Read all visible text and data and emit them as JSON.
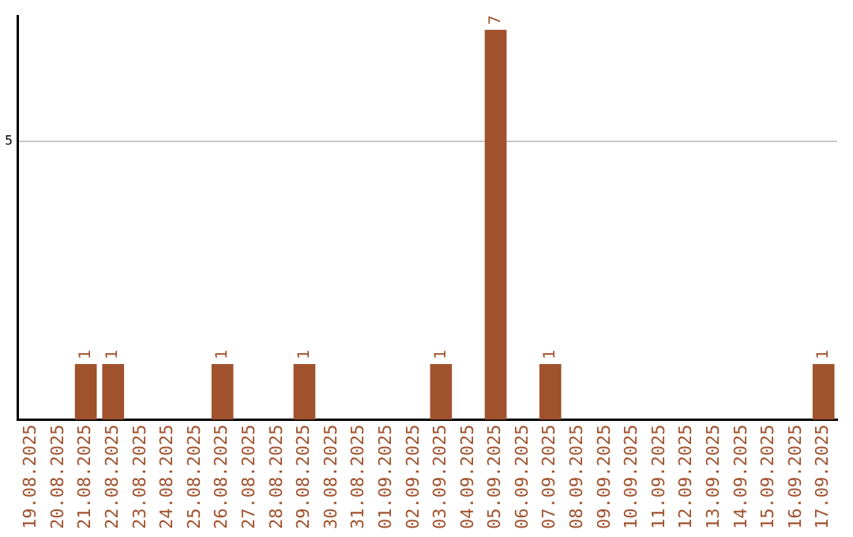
{
  "chart_data": {
    "type": "bar",
    "categories": [
      "19.08.2025",
      "20.08.2025",
      "21.08.2025",
      "22.08.2025",
      "23.08.2025",
      "24.08.2025",
      "25.08.2025",
      "26.08.2025",
      "27.08.2025",
      "28.08.2025",
      "29.08.2025",
      "30.08.2025",
      "31.08.2025",
      "01.09.2025",
      "02.09.2025",
      "03.09.2025",
      "04.09.2025",
      "05.09.2025",
      "06.09.2025",
      "07.09.2025",
      "08.09.2025",
      "09.09.2025",
      "10.09.2025",
      "11.09.2025",
      "12.09.2025",
      "13.09.2025",
      "14.09.2025",
      "15.09.2025",
      "16.09.2025",
      "17.09.2025"
    ],
    "values": [
      0,
      0,
      1,
      1,
      0,
      0,
      0,
      1,
      0,
      0,
      1,
      0,
      0,
      0,
      0,
      1,
      0,
      7,
      0,
      1,
      0,
      0,
      0,
      0,
      0,
      0,
      0,
      0,
      0,
      1
    ],
    "value_labels": [
      null,
      null,
      "1",
      "1",
      null,
      null,
      null,
      "1",
      null,
      null,
      "1",
      null,
      null,
      null,
      null,
      "1",
      null,
      "7",
      null,
      "1",
      null,
      null,
      null,
      null,
      null,
      null,
      null,
      null,
      null,
      "1"
    ],
    "color": "#a0522d",
    "ylim": [
      0,
      7.25
    ],
    "yticks": [
      5
    ],
    "grid": "y",
    "legend": false
  }
}
